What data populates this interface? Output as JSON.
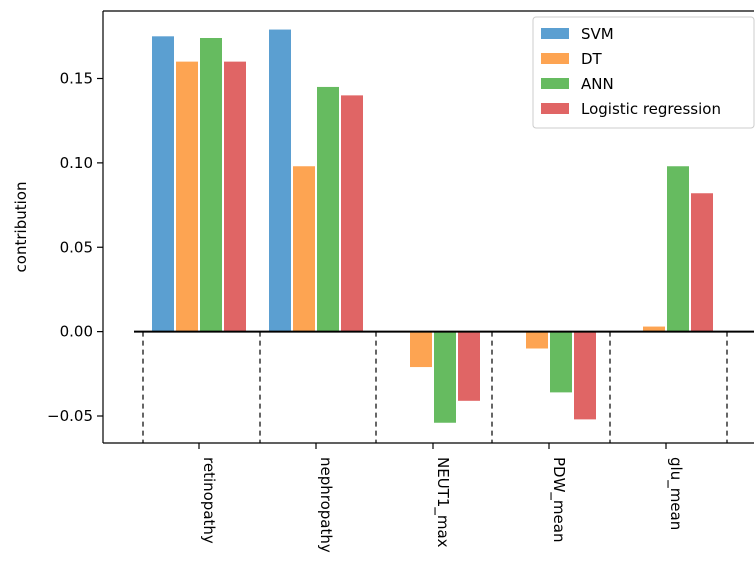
{
  "chart_data": {
    "type": "bar",
    "title": "",
    "xlabel": "",
    "ylabel": "contribution",
    "ylim": [
      -0.066,
      0.19
    ],
    "yticks": [
      -0.05,
      0.0,
      0.05,
      0.1,
      0.15
    ],
    "ytick_labels": [
      "−0.05",
      "0.00",
      "0.05",
      "0.10",
      "0.15"
    ],
    "categories": [
      "retinopathy",
      "nephropathy",
      "NEUT1_max",
      "PDW_mean",
      "glu_mean"
    ],
    "series": [
      {
        "name": "SVM",
        "color": "#5b9fd1",
        "values": [
          0.175,
          0.179,
          0.0,
          0.0,
          0.0
        ]
      },
      {
        "name": "DT",
        "color": "#fda452",
        "values": [
          0.16,
          0.098,
          -0.021,
          -0.01,
          0.003
        ]
      },
      {
        "name": "ANN",
        "color": "#66bb60",
        "values": [
          0.174,
          0.145,
          -0.054,
          -0.036,
          0.098
        ]
      },
      {
        "name": "Logistic regression",
        "color": "#e06565",
        "values": [
          0.16,
          0.14,
          -0.041,
          -0.052,
          0.082
        ]
      }
    ],
    "grid": false,
    "legend_position": "top-right",
    "reference_line": 0,
    "category_separators": "dashed"
  }
}
